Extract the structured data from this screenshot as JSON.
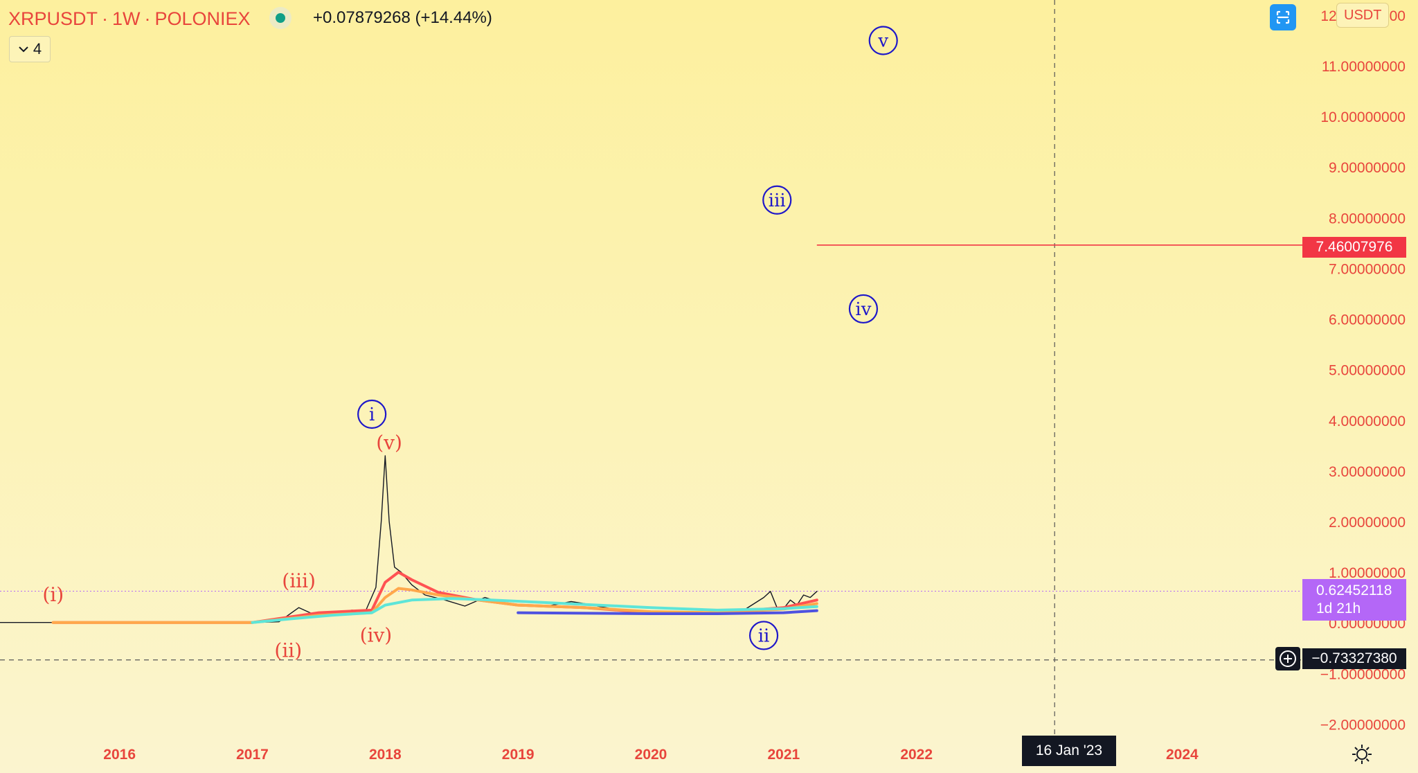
{
  "header": {
    "symbol": "XRPUSDT",
    "interval": "1W",
    "exchange": "POLONIEX",
    "separator": "·",
    "change_text": "+0.07879268 (+14.44%)",
    "status_icon": "status-dot-icon",
    "status_color": "#119f87"
  },
  "indicator_toggle": {
    "icon": "chevron-down-icon",
    "count": "4"
  },
  "toolbar": {
    "fit_icon": "scale-fit-icon",
    "currency": "USDT",
    "settings_icon": "gear-icon"
  },
  "price_scale": {
    "labels": [
      "12.00000000",
      "11.00000000",
      "10.00000000",
      "9.00000000",
      "8.00000000",
      "7.00000000",
      "6.00000000",
      "5.00000000",
      "4.00000000",
      "3.00000000",
      "2.00000000",
      "1.00000000",
      "0.00000000",
      "−1.00000000",
      "−2.00000000"
    ],
    "target_price": "7.46007976",
    "last_price": "0.62452118",
    "countdown": "1d 21h",
    "crosshair_price": "−0.73327380"
  },
  "time_scale": {
    "labels": [
      "2016",
      "2017",
      "2018",
      "2019",
      "2020",
      "2021",
      "2022",
      "2024"
    ],
    "crosshair_date": "16 Jan '23"
  },
  "colors": {
    "accent_red": "#e8453c",
    "wave_blue": "#1e17c9",
    "target_line": "#f23645",
    "last_price_bg": "#b467f7",
    "button_blue": "#2196f3"
  },
  "chart_data": {
    "type": "line",
    "title": "XRPUSDT · 1W · POLONIEX",
    "xlabel": "",
    "ylabel": "",
    "ylim": [
      -2.2,
      12.3
    ],
    "xlim": [
      2015.1,
      2024.9
    ],
    "series": [
      {
        "color": "#131722",
        "x": [
          2015.1,
          2015.5,
          2016.0,
          2016.5,
          2017.0,
          2017.2,
          2017.35,
          2017.45,
          2017.6,
          2017.75,
          2017.85,
          2017.93,
          2017.97,
          2018.0,
          2018.03,
          2018.07,
          2018.12,
          2018.2,
          2018.3,
          2018.45,
          2018.6,
          2018.75,
          2018.85,
          2019.0,
          2019.2,
          2019.4,
          2019.5,
          2019.7,
          2019.9,
          2020.0,
          2020.2,
          2020.35,
          2020.5,
          2020.7,
          2020.85,
          2020.9,
          2020.95,
          2021.0,
          2021.05,
          2021.1,
          2021.15,
          2021.2,
          2021.25
        ],
        "values": [
          0.006,
          0.007,
          0.008,
          0.007,
          0.006,
          0.02,
          0.3,
          0.18,
          0.2,
          0.25,
          0.22,
          0.7,
          2.0,
          3.3,
          2.0,
          1.1,
          1.0,
          0.75,
          0.55,
          0.45,
          0.33,
          0.5,
          0.42,
          0.35,
          0.32,
          0.42,
          0.38,
          0.28,
          0.22,
          0.19,
          0.17,
          0.2,
          0.2,
          0.25,
          0.5,
          0.62,
          0.3,
          0.28,
          0.45,
          0.35,
          0.55,
          0.5,
          0.62
        ]
      },
      {
        "color": "#ff5252",
        "x": [
          2015.5,
          2017.0,
          2017.5,
          2017.9,
          2018.0,
          2018.1,
          2018.2,
          2018.4,
          2018.7,
          2019.0,
          2019.5,
          2020.0,
          2020.5,
          2021.0,
          2021.25
        ],
        "values": [
          0.006,
          0.007,
          0.2,
          0.25,
          0.8,
          1.0,
          0.85,
          0.6,
          0.45,
          0.35,
          0.3,
          0.2,
          0.2,
          0.3,
          0.45
        ]
      },
      {
        "color": "#ffa84b",
        "x": [
          2015.5,
          2017.0,
          2017.5,
          2017.9,
          2018.0,
          2018.1,
          2018.2,
          2018.4,
          2018.7,
          2019.0,
          2019.5,
          2020.0,
          2020.5,
          2021.0,
          2021.25
        ],
        "values": [
          0.006,
          0.007,
          0.15,
          0.2,
          0.5,
          0.68,
          0.65,
          0.55,
          0.45,
          0.35,
          0.3,
          0.22,
          0.2,
          0.27,
          0.38
        ]
      },
      {
        "color": "#5ee5d8",
        "x": [
          2017.0,
          2017.3,
          2017.6,
          2017.9,
          2018.0,
          2018.2,
          2018.5,
          2018.8,
          2019.2,
          2019.6,
          2020.0,
          2020.5,
          2021.0,
          2021.25
        ],
        "values": [
          0.007,
          0.08,
          0.15,
          0.2,
          0.35,
          0.45,
          0.48,
          0.45,
          0.4,
          0.35,
          0.3,
          0.25,
          0.28,
          0.32
        ]
      },
      {
        "color": "#4e52e0",
        "x": [
          2019.0,
          2020.0,
          2020.5,
          2021.0,
          2021.25
        ],
        "values": [
          0.2,
          0.18,
          0.18,
          0.2,
          0.24
        ]
      }
    ],
    "wave_labels": [
      {
        "text": "(i)",
        "x": 2015.5,
        "y": 0.55,
        "color": "#e8453c"
      },
      {
        "text": "(ii)",
        "x": 2017.27,
        "y": -0.55,
        "color": "#e8453c"
      },
      {
        "text": "(iii)",
        "x": 2017.35,
        "y": 0.82,
        "color": "#e8453c"
      },
      {
        "text": "(iv)",
        "x": 2017.93,
        "y": -0.25,
        "color": "#e8453c"
      },
      {
        "text": "(v)",
        "x": 2018.03,
        "y": 3.55,
        "color": "#e8453c"
      },
      {
        "text": "i",
        "x": 2017.9,
        "y": 4.12,
        "color": "#1e17c9",
        "circled": true
      },
      {
        "text": "ii",
        "x": 2020.85,
        "y": -0.25,
        "color": "#1e17c9",
        "circled": true
      },
      {
        "text": "iii",
        "x": 2020.95,
        "y": 8.35,
        "color": "#1e17c9",
        "circled": true
      },
      {
        "text": "iv",
        "x": 2021.6,
        "y": 6.2,
        "color": "#1e17c9",
        "circled": true
      },
      {
        "text": "v",
        "x": 2021.75,
        "y": 11.5,
        "color": "#1e17c9",
        "circled": true
      }
    ],
    "target_line": {
      "value": 7.46,
      "from_x": 2021.25
    },
    "last_price": 0.6245,
    "crosshair": {
      "x": 2023.04,
      "y": -0.733
    },
    "grid": false
  }
}
